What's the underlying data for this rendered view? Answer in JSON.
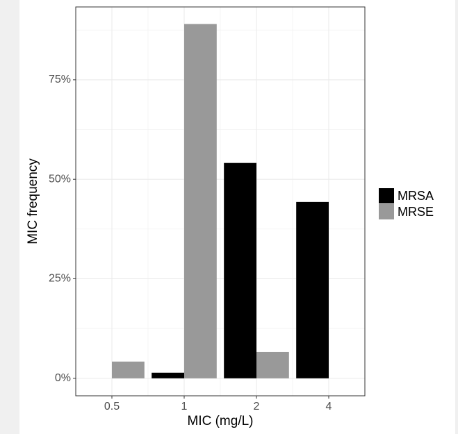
{
  "chart_data": {
    "type": "bar",
    "x_label": "MIC (mg/L)",
    "y_label": "MIC frequency",
    "categories": [
      "0.5",
      "1",
      "2",
      "4"
    ],
    "series": [
      {
        "name": "MRSA",
        "color": "#000000",
        "values": [
          0,
          1.4,
          54.1,
          44.3
        ]
      },
      {
        "name": "MRSE",
        "color": "#999999",
        "values": [
          4.2,
          89.0,
          6.6,
          0
        ]
      }
    ],
    "ylim": [
      -4.4,
      93.3
    ],
    "yticks": [
      {
        "value": 0,
        "label": "0%"
      },
      {
        "value": 25,
        "label": "25%"
      },
      {
        "value": 50,
        "label": "50%"
      },
      {
        "value": 75,
        "label": "75%"
      }
    ],
    "grid": true,
    "legend": "right"
  }
}
